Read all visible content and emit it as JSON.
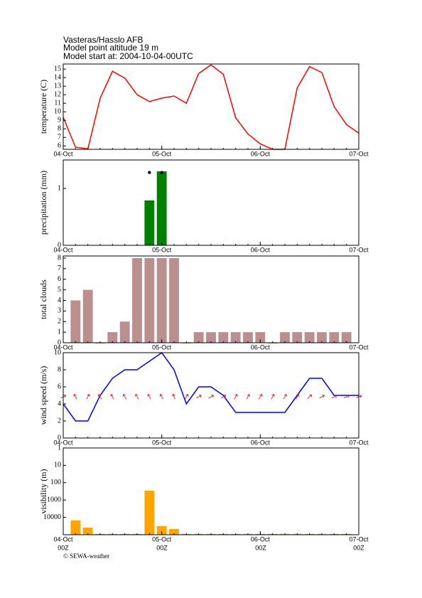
{
  "title_lines": [
    "Vasteras/Hasslo AFB",
    "Model point altitude  19 m",
    "Model start at: 2004-10-04-00UTC"
  ],
  "footer_time_labels": [
    "00Z",
    "00Z",
    "00Z",
    "00Z"
  ],
  "credit": "© SEWA-weather",
  "chart_data": [
    {
      "type": "line",
      "y_label": "temperature (C)",
      "color": "#ff0000",
      "x": [
        0,
        3,
        6,
        9,
        12,
        15,
        18,
        21,
        24,
        27,
        30,
        33,
        36,
        39,
        42,
        45,
        48,
        51,
        54,
        57,
        60,
        63,
        66,
        69,
        72
      ],
      "values": [
        9.35,
        5.85,
        5.65,
        11.6,
        14.75,
        13.95,
        12.0,
        11.2,
        11.6,
        11.85,
        11.0,
        14.5,
        15.5,
        14.4,
        9.3,
        7.4,
        6.25,
        5.6,
        5.6,
        12.8,
        15.3,
        14.6,
        10.6,
        8.5,
        7.5
      ],
      "xlim": [
        0,
        72
      ],
      "xticks": [
        {
          "value": 0,
          "label": "04-Oct"
        },
        {
          "value": 24,
          "label": "05-Oct"
        },
        {
          "value": 48,
          "label": "06-Oct"
        },
        {
          "value": 72,
          "label": "07-Oct"
        }
      ],
      "ylim": [
        5.6,
        15.6
      ],
      "yticks": [
        6,
        7,
        8,
        9,
        10,
        11,
        12,
        13,
        14,
        15
      ]
    },
    {
      "type": "bar",
      "y_label": "precipitation (mm)",
      "color": "#008000",
      "x": [
        21,
        24
      ],
      "values": [
        0.79,
        1.3
      ],
      "markers": {
        "color": "#000000",
        "x": [
          21,
          24
        ],
        "values": [
          1.28,
          1.28
        ]
      },
      "xlim": [
        0,
        72
      ],
      "xticks": [
        {
          "value": 0,
          "label": "04-Oct"
        },
        {
          "value": 24,
          "label": "05-Oct"
        },
        {
          "value": 48,
          "label": "06-Oct"
        },
        {
          "value": 72,
          "label": "07-Oct"
        }
      ],
      "ylim": [
        0,
        1.5
      ],
      "yticks": [
        0,
        1
      ]
    },
    {
      "type": "bar",
      "y_label": "total clouds",
      "color": "#bc8f8f",
      "x": [
        3,
        6,
        9,
        12,
        15,
        18,
        21,
        24,
        27,
        30,
        33,
        36,
        39,
        42,
        45,
        48,
        51,
        54,
        57,
        60,
        63,
        66,
        69
      ],
      "values": [
        4,
        5,
        0,
        1,
        2,
        8,
        8,
        8,
        8,
        0,
        1,
        1,
        1,
        1,
        1,
        1,
        0,
        1,
        1,
        1,
        1,
        1,
        1
      ],
      "xlim": [
        0,
        72
      ],
      "xticks": [
        {
          "value": 0,
          "label": "04-Oct"
        },
        {
          "value": 24,
          "label": "05-Oct"
        },
        {
          "value": 48,
          "label": "06-Oct"
        },
        {
          "value": 72,
          "label": "07-Oct"
        }
      ],
      "ylim": [
        0,
        8.2
      ],
      "yticks": [
        0,
        1,
        2,
        3,
        4,
        5,
        6,
        7,
        8
      ]
    },
    {
      "type": "line",
      "y_label": "wind speed (m/s)",
      "color": "#0000ff",
      "x": [
        0,
        3,
        6,
        9,
        12,
        15,
        18,
        21,
        24,
        27,
        30,
        33,
        36,
        39,
        42,
        45,
        48,
        51,
        54,
        57,
        60,
        63,
        66,
        69,
        72
      ],
      "values": [
        4,
        2,
        2,
        5,
        7,
        8,
        8,
        9,
        10,
        8,
        4,
        6,
        6,
        5,
        3,
        3,
        3,
        3,
        3,
        5,
        7,
        7,
        5,
        5,
        5
      ],
      "wind_direction": {
        "color": "#ff0000",
        "values": [
          60,
          330,
          30,
          330,
          330,
          330,
          330,
          330,
          330,
          340,
          30,
          60,
          60,
          60,
          30,
          30,
          30,
          30,
          30,
          30,
          45,
          60,
          60,
          60,
          70
        ]
      },
      "xlim": [
        0,
        72
      ],
      "xticks": [
        {
          "value": 0,
          "label": "04-Oct"
        },
        {
          "value": 24,
          "label": "05-Oct"
        },
        {
          "value": 48,
          "label": "06-Oct"
        },
        {
          "value": 72,
          "label": "07-Oct"
        }
      ],
      "ylim": [
        0,
        10
      ],
      "yticks": [
        0,
        2,
        4,
        6,
        8,
        10
      ]
    },
    {
      "type": "bar",
      "y_label": "visibility (m)",
      "color": "#ffa500",
      "log_scale": true,
      "x": [
        3,
        6,
        9,
        12,
        15,
        18,
        21,
        24,
        27,
        30,
        33,
        36,
        39,
        42,
        45,
        48,
        51,
        54,
        57,
        60,
        63,
        66,
        69
      ],
      "values": [
        15000,
        39000,
        90000,
        90000,
        90000,
        90000,
        290,
        32000,
        47000,
        90000,
        90000,
        90000,
        90000,
        90000,
        90000,
        90000,
        90000,
        90000,
        90000,
        90000,
        90000,
        90000,
        90000
      ],
      "xlim": [
        0,
        72
      ],
      "xticks": [
        {
          "value": 0,
          "label": "04-Oct"
        },
        {
          "value": 24,
          "label": "05-Oct"
        },
        {
          "value": 48,
          "label": "06-Oct"
        },
        {
          "value": 72,
          "label": "07-Oct"
        }
      ],
      "ylim": [
        100000,
        1
      ],
      "yticks": [
        1,
        10,
        100,
        1000,
        10000
      ]
    }
  ]
}
